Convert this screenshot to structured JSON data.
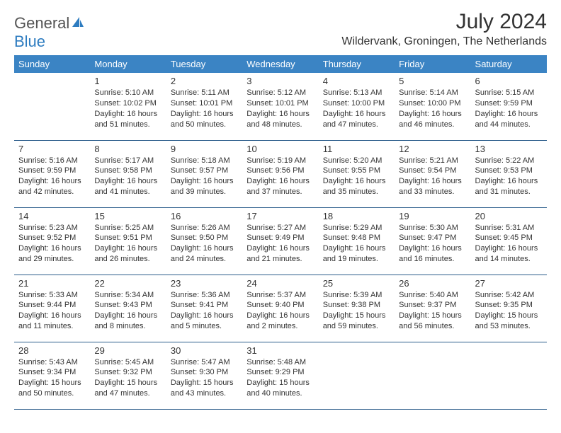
{
  "brand": {
    "part1": "General",
    "part2": "Blue"
  },
  "title": "July 2024",
  "location": "Wildervank, Groningen, The Netherlands",
  "colors": {
    "header_bg": "#3b84c4",
    "header_text": "#ffffff",
    "border": "#2a5c8a",
    "text": "#333333",
    "brand_gray": "#555555",
    "brand_blue": "#2e7cc0"
  },
  "weekdays": [
    "Sunday",
    "Monday",
    "Tuesday",
    "Wednesday",
    "Thursday",
    "Friday",
    "Saturday"
  ],
  "weeks": [
    [
      null,
      {
        "n": "1",
        "sr": "Sunrise: 5:10 AM",
        "ss": "Sunset: 10:02 PM",
        "dl": "Daylight: 16 hours and 51 minutes."
      },
      {
        "n": "2",
        "sr": "Sunrise: 5:11 AM",
        "ss": "Sunset: 10:01 PM",
        "dl": "Daylight: 16 hours and 50 minutes."
      },
      {
        "n": "3",
        "sr": "Sunrise: 5:12 AM",
        "ss": "Sunset: 10:01 PM",
        "dl": "Daylight: 16 hours and 48 minutes."
      },
      {
        "n": "4",
        "sr": "Sunrise: 5:13 AM",
        "ss": "Sunset: 10:00 PM",
        "dl": "Daylight: 16 hours and 47 minutes."
      },
      {
        "n": "5",
        "sr": "Sunrise: 5:14 AM",
        "ss": "Sunset: 10:00 PM",
        "dl": "Daylight: 16 hours and 46 minutes."
      },
      {
        "n": "6",
        "sr": "Sunrise: 5:15 AM",
        "ss": "Sunset: 9:59 PM",
        "dl": "Daylight: 16 hours and 44 minutes."
      }
    ],
    [
      {
        "n": "7",
        "sr": "Sunrise: 5:16 AM",
        "ss": "Sunset: 9:59 PM",
        "dl": "Daylight: 16 hours and 42 minutes."
      },
      {
        "n": "8",
        "sr": "Sunrise: 5:17 AM",
        "ss": "Sunset: 9:58 PM",
        "dl": "Daylight: 16 hours and 41 minutes."
      },
      {
        "n": "9",
        "sr": "Sunrise: 5:18 AM",
        "ss": "Sunset: 9:57 PM",
        "dl": "Daylight: 16 hours and 39 minutes."
      },
      {
        "n": "10",
        "sr": "Sunrise: 5:19 AM",
        "ss": "Sunset: 9:56 PM",
        "dl": "Daylight: 16 hours and 37 minutes."
      },
      {
        "n": "11",
        "sr": "Sunrise: 5:20 AM",
        "ss": "Sunset: 9:55 PM",
        "dl": "Daylight: 16 hours and 35 minutes."
      },
      {
        "n": "12",
        "sr": "Sunrise: 5:21 AM",
        "ss": "Sunset: 9:54 PM",
        "dl": "Daylight: 16 hours and 33 minutes."
      },
      {
        "n": "13",
        "sr": "Sunrise: 5:22 AM",
        "ss": "Sunset: 9:53 PM",
        "dl": "Daylight: 16 hours and 31 minutes."
      }
    ],
    [
      {
        "n": "14",
        "sr": "Sunrise: 5:23 AM",
        "ss": "Sunset: 9:52 PM",
        "dl": "Daylight: 16 hours and 29 minutes."
      },
      {
        "n": "15",
        "sr": "Sunrise: 5:25 AM",
        "ss": "Sunset: 9:51 PM",
        "dl": "Daylight: 16 hours and 26 minutes."
      },
      {
        "n": "16",
        "sr": "Sunrise: 5:26 AM",
        "ss": "Sunset: 9:50 PM",
        "dl": "Daylight: 16 hours and 24 minutes."
      },
      {
        "n": "17",
        "sr": "Sunrise: 5:27 AM",
        "ss": "Sunset: 9:49 PM",
        "dl": "Daylight: 16 hours and 21 minutes."
      },
      {
        "n": "18",
        "sr": "Sunrise: 5:29 AM",
        "ss": "Sunset: 9:48 PM",
        "dl": "Daylight: 16 hours and 19 minutes."
      },
      {
        "n": "19",
        "sr": "Sunrise: 5:30 AM",
        "ss": "Sunset: 9:47 PM",
        "dl": "Daylight: 16 hours and 16 minutes."
      },
      {
        "n": "20",
        "sr": "Sunrise: 5:31 AM",
        "ss": "Sunset: 9:45 PM",
        "dl": "Daylight: 16 hours and 14 minutes."
      }
    ],
    [
      {
        "n": "21",
        "sr": "Sunrise: 5:33 AM",
        "ss": "Sunset: 9:44 PM",
        "dl": "Daylight: 16 hours and 11 minutes."
      },
      {
        "n": "22",
        "sr": "Sunrise: 5:34 AM",
        "ss": "Sunset: 9:43 PM",
        "dl": "Daylight: 16 hours and 8 minutes."
      },
      {
        "n": "23",
        "sr": "Sunrise: 5:36 AM",
        "ss": "Sunset: 9:41 PM",
        "dl": "Daylight: 16 hours and 5 minutes."
      },
      {
        "n": "24",
        "sr": "Sunrise: 5:37 AM",
        "ss": "Sunset: 9:40 PM",
        "dl": "Daylight: 16 hours and 2 minutes."
      },
      {
        "n": "25",
        "sr": "Sunrise: 5:39 AM",
        "ss": "Sunset: 9:38 PM",
        "dl": "Daylight: 15 hours and 59 minutes."
      },
      {
        "n": "26",
        "sr": "Sunrise: 5:40 AM",
        "ss": "Sunset: 9:37 PM",
        "dl": "Daylight: 15 hours and 56 minutes."
      },
      {
        "n": "27",
        "sr": "Sunrise: 5:42 AM",
        "ss": "Sunset: 9:35 PM",
        "dl": "Daylight: 15 hours and 53 minutes."
      }
    ],
    [
      {
        "n": "28",
        "sr": "Sunrise: 5:43 AM",
        "ss": "Sunset: 9:34 PM",
        "dl": "Daylight: 15 hours and 50 minutes."
      },
      {
        "n": "29",
        "sr": "Sunrise: 5:45 AM",
        "ss": "Sunset: 9:32 PM",
        "dl": "Daylight: 15 hours and 47 minutes."
      },
      {
        "n": "30",
        "sr": "Sunrise: 5:47 AM",
        "ss": "Sunset: 9:30 PM",
        "dl": "Daylight: 15 hours and 43 minutes."
      },
      {
        "n": "31",
        "sr": "Sunrise: 5:48 AM",
        "ss": "Sunset: 9:29 PM",
        "dl": "Daylight: 15 hours and 40 minutes."
      },
      null,
      null,
      null
    ]
  ]
}
